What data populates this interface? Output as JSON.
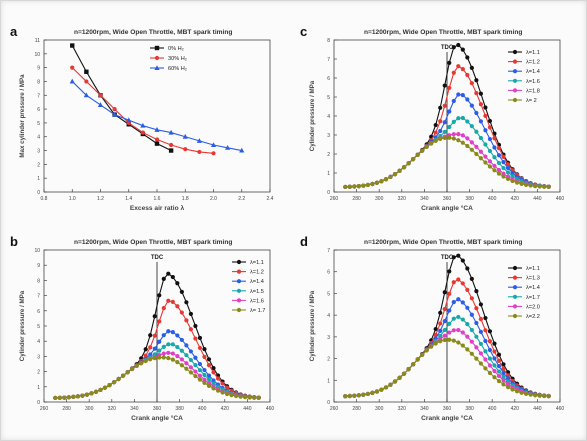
{
  "chart_data": [
    {
      "id": "a",
      "panel_label": "a",
      "type": "line",
      "title": "n=1200rpm, Wide Open Throttle, MBT spark timing",
      "xlabel": "Excess air ratio λ",
      "ylabel": "Max cylinder pressure / MPa",
      "xlim": [
        0.8,
        2.4
      ],
      "ylim": [
        0,
        11
      ],
      "xticks": [
        "0.8",
        "1.0",
        "1.2",
        "1.4",
        "1.6",
        "1.8",
        "2.0",
        "2.2",
        "2.4"
      ],
      "yticks": [
        "0",
        "1",
        "2",
        "3",
        "4",
        "5",
        "6",
        "7",
        "8",
        "9",
        "10",
        "11"
      ],
      "legend_position": "top-right",
      "grid": false,
      "series": [
        {
          "name": "0% H₂",
          "color": "#111111",
          "marker": "square",
          "x": [
            1.0,
            1.1,
            1.2,
            1.3,
            1.4,
            1.5,
            1.6,
            1.7
          ],
          "y": [
            10.6,
            8.7,
            7.0,
            5.6,
            4.9,
            4.2,
            3.5,
            3.0
          ]
        },
        {
          "name": "30% H₂",
          "color": "#e53935",
          "marker": "circle",
          "x": [
            1.0,
            1.1,
            1.2,
            1.3,
            1.4,
            1.5,
            1.6,
            1.7,
            1.8,
            1.9,
            2.0
          ],
          "y": [
            9.0,
            8.0,
            7.0,
            6.0,
            5.0,
            4.3,
            3.8,
            3.4,
            3.1,
            2.9,
            2.8
          ]
        },
        {
          "name": "60% H₂",
          "color": "#2c5de5",
          "marker": "triangle",
          "x": [
            1.0,
            1.1,
            1.2,
            1.3,
            1.4,
            1.5,
            1.6,
            1.7,
            1.8,
            1.9,
            2.0,
            2.1,
            2.2
          ],
          "y": [
            8.0,
            7.0,
            6.3,
            5.6,
            5.2,
            4.8,
            4.5,
            4.3,
            4.0,
            3.7,
            3.4,
            3.2,
            3.0
          ]
        }
      ]
    },
    {
      "id": "c",
      "panel_label": "c",
      "type": "line",
      "title": "n=1200rpm, Wide Open Throttle, MBT spark timing",
      "xlabel": "Crank angle °CA",
      "ylabel": "Cylinder pressure / MPa",
      "xlim": [
        260,
        460
      ],
      "ylim": [
        0,
        8
      ],
      "xticks": [
        "260",
        "280",
        "300",
        "320",
        "340",
        "360",
        "380",
        "400",
        "420",
        "440",
        "460"
      ],
      "yticks": [
        "0",
        "1",
        "2",
        "3",
        "4",
        "5",
        "6",
        "7",
        "8"
      ],
      "tdc": {
        "x": 360,
        "label": "TDC"
      },
      "legend_position": "top-right",
      "grid": false,
      "series": [
        {
          "name": "λ=1.1",
          "color": "#111111",
          "peak_x": 369,
          "peak_y": 7.9
        },
        {
          "name": "λ=1.2",
          "color": "#e53935",
          "peak_x": 371,
          "peak_y": 6.8
        },
        {
          "name": "λ=1.4",
          "color": "#2c5de5",
          "peak_x": 373,
          "peak_y": 5.4
        },
        {
          "name": "λ=1.6",
          "color": "#17a9a9",
          "peak_x": 375,
          "peak_y": 4.2
        },
        {
          "name": "λ=1.8",
          "color": "#e040c8",
          "peak_x": 377,
          "peak_y": 3.3
        },
        {
          "name": "λ= 2",
          "color": "#8a8a1a",
          "peak_x": 379,
          "peak_y": 2.9
        }
      ]
    },
    {
      "id": "b",
      "panel_label": "b",
      "type": "line",
      "title": "n=1200rpm, Wide Open Throttle, MBT spark timing",
      "xlabel": "Crank angle °CA",
      "ylabel": "Cylinder pressure / MPa",
      "xlim": [
        260,
        460
      ],
      "ylim": [
        0,
        10
      ],
      "xticks": [
        "260",
        "280",
        "300",
        "320",
        "340",
        "360",
        "380",
        "400",
        "420",
        "440",
        "460"
      ],
      "yticks": [
        "0",
        "1",
        "2",
        "3",
        "4",
        "5",
        "6",
        "7",
        "8",
        "9",
        "10"
      ],
      "tdc": {
        "x": 360,
        "label": "TDC"
      },
      "legend_position": "top-right",
      "grid": false,
      "series": [
        {
          "name": "λ=1.1",
          "color": "#111111",
          "peak_x": 370,
          "peak_y": 8.6
        },
        {
          "name": "λ=1.2",
          "color": "#e53935",
          "peak_x": 372,
          "peak_y": 6.9
        },
        {
          "name": "λ=1.4",
          "color": "#2c5de5",
          "peak_x": 373,
          "peak_y": 4.9
        },
        {
          "name": "λ=1.5",
          "color": "#17a9a9",
          "peak_x": 375,
          "peak_y": 4.1
        },
        {
          "name": "λ=1.6",
          "color": "#e040c8",
          "peak_x": 376,
          "peak_y": 3.5
        },
        {
          "name": "λ= 1.7",
          "color": "#8a8a1a",
          "peak_x": 377,
          "peak_y": 3.1
        }
      ]
    },
    {
      "id": "d",
      "panel_label": "d",
      "type": "line",
      "title": "n=1200rpm, Wide Open Throttle, MBT spark timing",
      "xlabel": "Crank angle °CA",
      "ylabel": "Cylinder pressure / MPa",
      "xlim": [
        260,
        460
      ],
      "ylim": [
        0,
        7
      ],
      "xticks": [
        "260",
        "280",
        "300",
        "320",
        "340",
        "360",
        "380",
        "400",
        "420",
        "440",
        "460"
      ],
      "yticks": [
        "0",
        "1",
        "2",
        "3",
        "4",
        "5",
        "6",
        "7"
      ],
      "tdc": {
        "x": 360,
        "label": "TDC"
      },
      "legend_position": "top-right",
      "grid": false,
      "series": [
        {
          "name": "λ=1.1",
          "color": "#111111",
          "peak_x": 369,
          "peak_y": 6.9
        },
        {
          "name": "λ=1.3",
          "color": "#e53935",
          "peak_x": 370,
          "peak_y": 5.8
        },
        {
          "name": "λ=1.4",
          "color": "#2c5de5",
          "peak_x": 371,
          "peak_y": 4.9
        },
        {
          "name": "λ=1.7",
          "color": "#17a9a9",
          "peak_x": 372,
          "peak_y": 4.1
        },
        {
          "name": "λ=2.0",
          "color": "#e040c8",
          "peak_x": 373,
          "peak_y": 3.5
        },
        {
          "name": "λ=2.2",
          "color": "#8a8a1a",
          "peak_x": 374,
          "peak_y": 2.9
        }
      ]
    }
  ]
}
